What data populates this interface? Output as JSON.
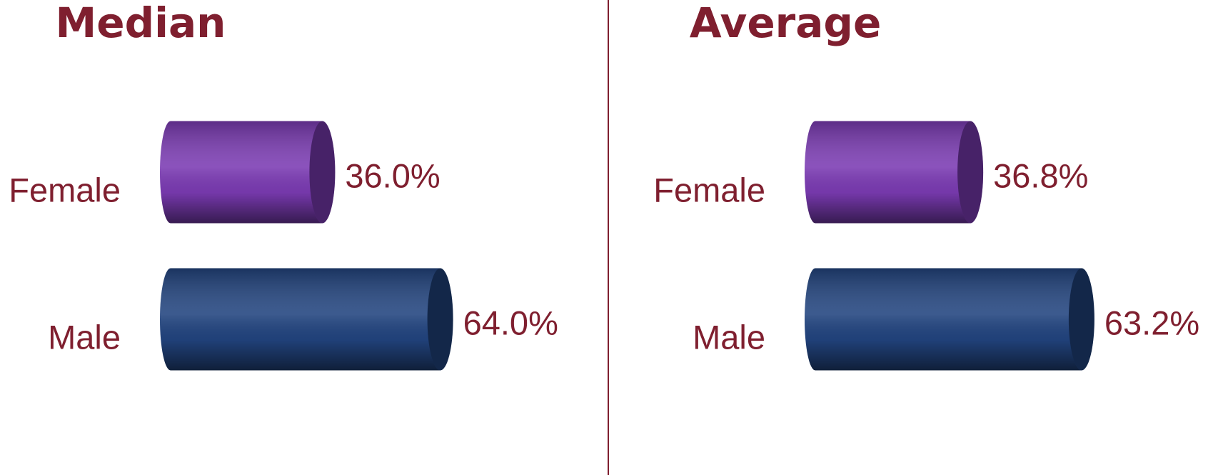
{
  "chart_data": [
    {
      "type": "bar",
      "title": "Median",
      "categories": [
        "Female",
        "Male"
      ],
      "values": [
        36.0,
        64.0
      ],
      "value_labels": [
        "36.0%",
        "64.0%"
      ],
      "colors": [
        "#7b3bb3",
        "#22447f"
      ]
    },
    {
      "type": "bar",
      "title": "Average",
      "categories": [
        "Female",
        "Male"
      ],
      "values": [
        36.8,
        63.2
      ],
      "value_labels": [
        "36.8%",
        "63.2%"
      ],
      "colors": [
        "#7b3bb3",
        "#22447f"
      ]
    }
  ]
}
